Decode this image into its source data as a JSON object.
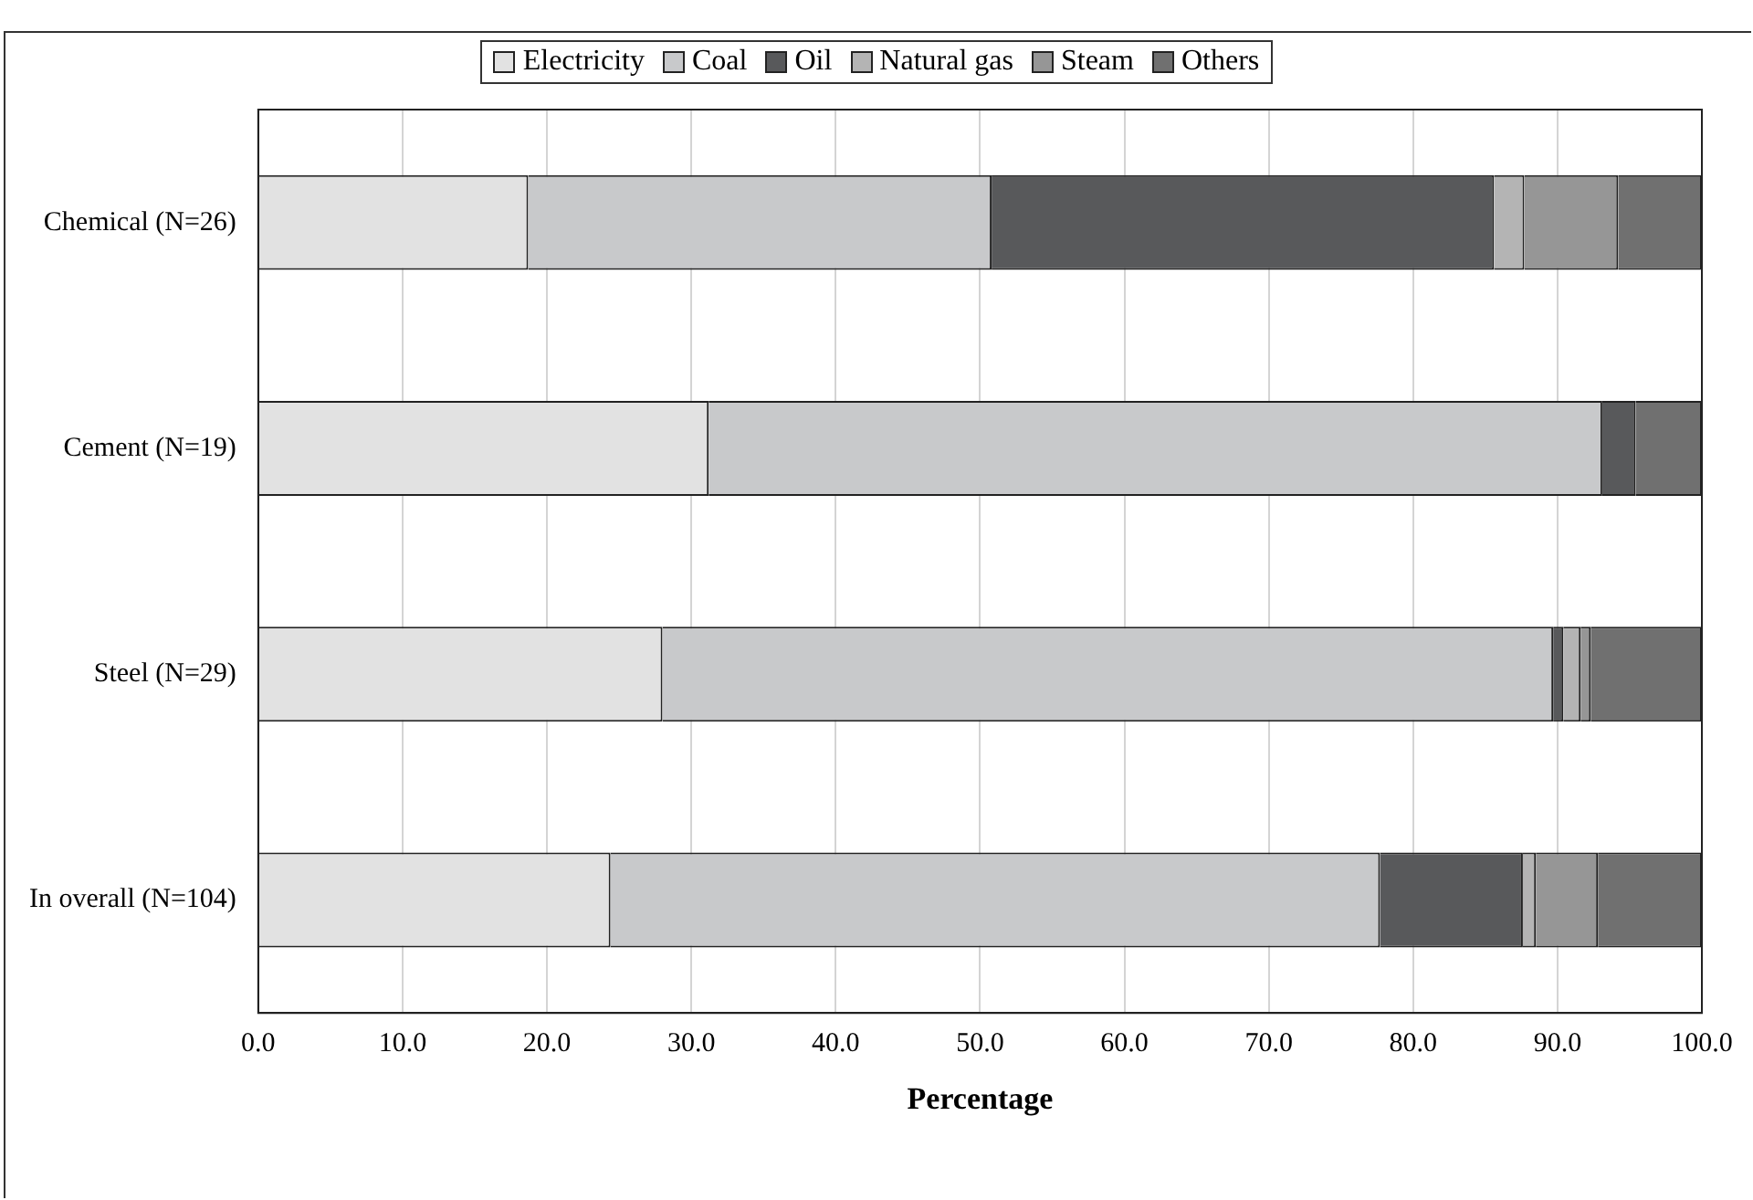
{
  "chart_data": {
    "type": "bar",
    "orientation": "horizontal",
    "stacked": true,
    "xlabel": "Percentage",
    "categories": [
      "Chemical (N=26)",
      "Cement (N=19)",
      "Steel (N=29)",
      "In overall (N=104)"
    ],
    "series": [
      {
        "name": "Electricity",
        "color": "#e2e2e2",
        "values": [
          18.7,
          31.2,
          28.0,
          24.4
        ]
      },
      {
        "name": "Coal",
        "color": "#c8c9cb",
        "values": [
          32.1,
          61.9,
          61.7,
          53.3
        ]
      },
      {
        "name": "Oil",
        "color": "#58595b",
        "values": [
          34.8,
          2.3,
          0.7,
          9.9
        ]
      },
      {
        "name": "Natural gas",
        "color": "#b4b4b4",
        "values": [
          2.1,
          0,
          1.2,
          0.9
        ]
      },
      {
        "name": "Steam",
        "color": "#969696",
        "values": [
          6.5,
          0,
          0.7,
          4.3
        ]
      },
      {
        "name": "Others",
        "color": "#707070",
        "values": [
          5.8,
          4.6,
          7.7,
          7.2
        ]
      }
    ],
    "xlim": [
      0,
      100
    ],
    "xticks": [
      {
        "value": 0,
        "label": "0.0"
      },
      {
        "value": 10,
        "label": "10.0"
      },
      {
        "value": 20,
        "label": "20.0"
      },
      {
        "value": 30,
        "label": "30.0"
      },
      {
        "value": 40,
        "label": "40.0"
      },
      {
        "value": 50,
        "label": "50.0"
      },
      {
        "value": 60,
        "label": "60.0"
      },
      {
        "value": 70,
        "label": "70.0"
      },
      {
        "value": 80,
        "label": "80.0"
      },
      {
        "value": 90,
        "label": "90.0"
      },
      {
        "value": 100,
        "label": "100.0"
      }
    ],
    "grid": "x",
    "legend": "top"
  }
}
